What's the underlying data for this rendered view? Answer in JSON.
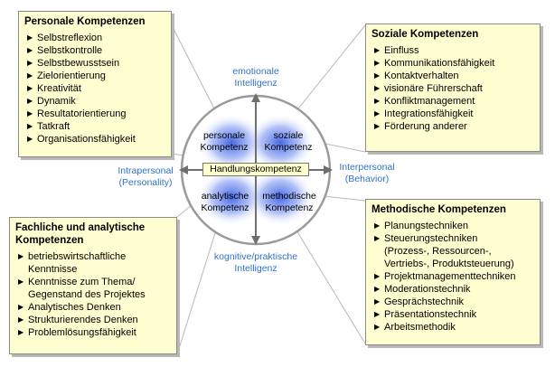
{
  "boxes": {
    "personal": {
      "title": "Personale Kompetenzen",
      "items": [
        "Selbstreflexion",
        "Selbstkontrolle",
        "Selbstbewusstsein",
        "Zielorientierung",
        "Kreativität",
        "Dynamik",
        "Resultatorientierung",
        "Tatkraft",
        "Organisationsfähigkeit"
      ]
    },
    "social": {
      "title": "Soziale Kompetenzen",
      "items": [
        "Einfluss",
        "Kommunikationsfähigkeit",
        "Kontaktverhalten",
        "visionäre Führerschaft",
        "Konfliktmanagement",
        "Integrationsfähigkeit",
        "Förderung anderer"
      ]
    },
    "technical": {
      "title_line1": "Fachliche und analytische",
      "title_line2": "Kompetenzen",
      "items": [
        [
          "betriebswirtschaftliche",
          "Kenntnisse"
        ],
        [
          "Kenntnisse zum Thema/",
          "Gegenstand des Projektes"
        ],
        [
          "Analytisches Denken"
        ],
        [
          "Strukturierendes Denken"
        ],
        [
          "Problemlösungsfähigkeit"
        ]
      ]
    },
    "methodic": {
      "title": "Methodische Kompetenzen",
      "items": [
        [
          "Planungstechniken"
        ],
        [
          "Steuerungstechniken",
          "(Prozess-, Ressourcen-,",
          "Vertriebs-, Produktsteuerung)"
        ],
        [
          "Projektmanagementtechniken"
        ],
        [
          "Moderationstechnik"
        ],
        [
          "Gesprächstechnik"
        ],
        [
          "Präsentationstechnik"
        ],
        [
          "Arbeitsmethodik"
        ]
      ]
    }
  },
  "axes": {
    "top": [
      "emotionale",
      "Intelligenz"
    ],
    "bottom": [
      "kognitive/praktische",
      "Intelligenz"
    ],
    "left": [
      "Intrapersonal",
      "(Personality)"
    ],
    "right": [
      "Interpersonal",
      "(Behavior)"
    ]
  },
  "quadrants": {
    "top_left": [
      "personale",
      "Kompetenz"
    ],
    "top_right": [
      "soziale",
      "Kompetenz"
    ],
    "bottom_left": [
      "analytische",
      "Kompetenz"
    ],
    "bottom_right": [
      "methodische",
      "Kompetenz"
    ]
  },
  "center": "Handlungskompetenz",
  "bullet_glyph": "▶",
  "colors": {
    "box_fill": "#fffed0",
    "axis_text": "#2f73c8",
    "blob": "#3c5fe0"
  }
}
